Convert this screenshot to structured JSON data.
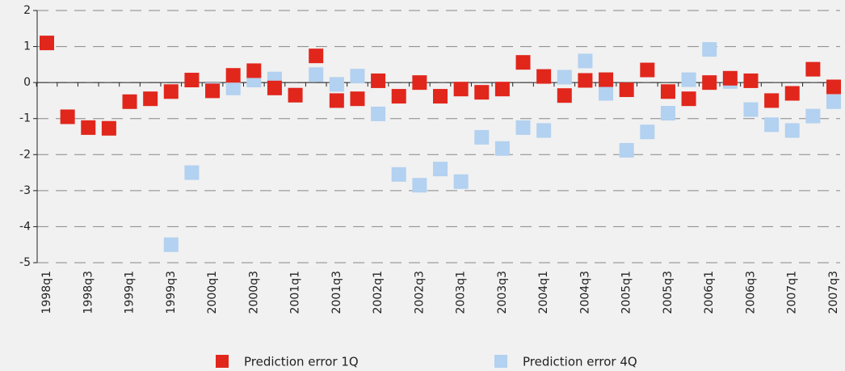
{
  "chart_data": {
    "type": "scatter",
    "categories": [
      "1998q1",
      null,
      "1998q3",
      null,
      "1999q1",
      null,
      "1999q3",
      null,
      "2000q1",
      null,
      "2000q3",
      null,
      "2001q1",
      null,
      "2001q3",
      null,
      "2002q1",
      null,
      "2002q3",
      null,
      "2003q1",
      null,
      "2003q3",
      null,
      "2004q1",
      null,
      "2004q3",
      null,
      "2005q1",
      null,
      "2005q3",
      null,
      "2006q1",
      null,
      "2006q3",
      null,
      "2007q1",
      null,
      "2007q3"
    ],
    "series": [
      {
        "name": "Prediction error 4Q",
        "color": "#b3d1f0",
        "values": [
          null,
          null,
          null,
          null,
          null,
          null,
          -4.5,
          -2.5,
          -0.2,
          -0.15,
          0.07,
          0.1,
          -0.35,
          0.22,
          -0.05,
          0.18,
          -0.87,
          -2.55,
          -2.85,
          -2.4,
          -2.75,
          -1.52,
          -1.83,
          -1.25,
          -1.33,
          0.15,
          0.6,
          -0.3,
          -1.88,
          -1.37,
          -0.85,
          0.08,
          0.92,
          0.03,
          -0.75,
          -1.17,
          -1.33,
          -0.93,
          -0.53
        ]
      },
      {
        "name": "Prediction error 1Q",
        "color": "#e1261c",
        "values": [
          1.1,
          -0.95,
          -1.25,
          -1.27,
          -0.53,
          -0.45,
          -0.25,
          0.07,
          -0.23,
          0.2,
          0.33,
          -0.15,
          -0.35,
          0.74,
          -0.5,
          -0.45,
          0.05,
          -0.38,
          0,
          -0.38,
          -0.18,
          -0.27,
          -0.18,
          0.56,
          0.17,
          -0.36,
          0.06,
          0.08,
          -0.2,
          0.35,
          -0.25,
          -0.45,
          0,
          0.12,
          0.05,
          -0.5,
          -0.3,
          0.37,
          -0.12
        ]
      }
    ],
    "ylim": [
      -5,
      2
    ],
    "yticks": [
      -5,
      -4,
      -3,
      -2,
      -1,
      0,
      1,
      2
    ],
    "grid": true
  }
}
